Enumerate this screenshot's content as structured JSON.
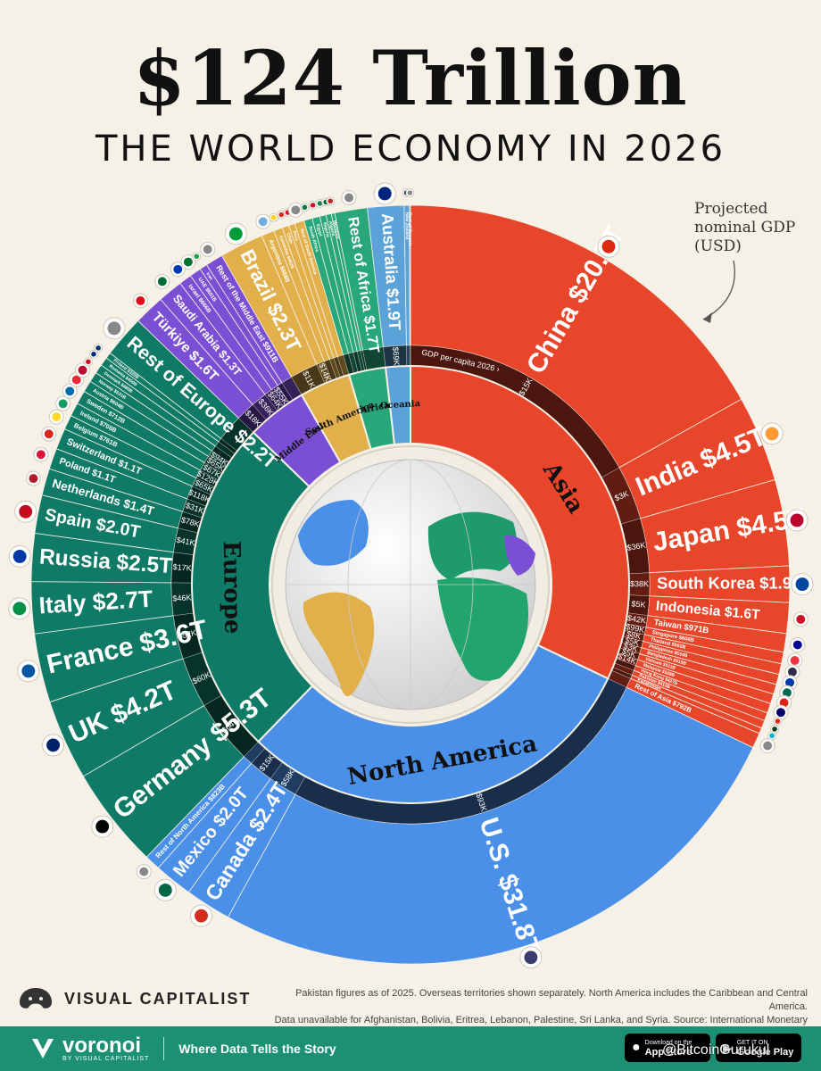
{
  "header": {
    "title": "$124 Trillion",
    "subtitle": "THE WORLD ECONOMY IN 2026",
    "note": "Projected nominal GDP (USD)"
  },
  "chart_data": {
    "type": "voronoi-donut",
    "unit": "USD",
    "per_capita_label": "GDP per capita 2026 ›",
    "regions": [
      {
        "name": "Asia",
        "color": "#e8462b",
        "countries": [
          {
            "name": "China",
            "gdp": "$20.7T",
            "value": 20.7,
            "per_capita": "$15K",
            "flag": "#de2910"
          },
          {
            "name": "India",
            "gdp": "$4.5T",
            "value": 4.5,
            "per_capita": "$3K",
            "flag": "#ff9933"
          },
          {
            "name": "Japan",
            "gdp": "$4.5T",
            "value": 4.5,
            "per_capita": "$36K",
            "flag": "#bc002d"
          },
          {
            "name": "South Korea",
            "gdp": "$1.9T",
            "value": 1.9,
            "per_capita": "$38K",
            "flag": "#0047a0"
          },
          {
            "name": "Indonesia",
            "gdp": "$1.6T",
            "value": 1.6,
            "per_capita": "$5K",
            "flag": "#ce1126"
          },
          {
            "name": "Taiwan",
            "gdp": "$971B",
            "value": 0.971,
            "per_capita": "$42K",
            "flag": "#000095"
          },
          {
            "name": "Singapore",
            "gdp": "$606B",
            "value": 0.606,
            "per_capita": "$99K",
            "flag": "#ef3340"
          },
          {
            "name": "Thailand",
            "gdp": "$562B",
            "value": 0.562,
            "per_capita": "$8K",
            "flag": "#2d2a4a"
          },
          {
            "name": "Philippines",
            "gdp": "$534B",
            "value": 0.534,
            "per_capita": "$5K",
            "flag": "#0038a8"
          },
          {
            "name": "Bangladesh",
            "gdp": "$519B",
            "value": 0.519,
            "per_capita": "$3K",
            "flag": "#006a4e"
          },
          {
            "name": "Vietnam",
            "gdp": "$511B",
            "value": 0.511,
            "per_capita": "$5K",
            "flag": "#da251d"
          },
          {
            "name": "Malaysia",
            "gdp": "$508B",
            "value": 0.508,
            "per_capita": "$14K",
            "flag": "#010066"
          },
          {
            "name": "Hong Kong",
            "gdp": "$427B",
            "value": 0.427,
            "per_capita": "$56K",
            "flag": "#de2910"
          },
          {
            "name": "Pakistan",
            "gdp": "$410B",
            "value": 0.41,
            "per_capita": "$2K",
            "flag": "#01411c"
          },
          {
            "name": "Kazakhstan",
            "gdp": "",
            "value": 0.3,
            "per_capita": "",
            "flag": "#00afca"
          },
          {
            "name": "Rest of Asia",
            "gdp": "$792B",
            "value": 0.792,
            "per_capita": "",
            "flag": "#888888"
          }
        ]
      },
      {
        "name": "North America",
        "color": "#4a8fe8",
        "countries": [
          {
            "name": "U.S.",
            "gdp": "$31.8T",
            "value": 31.8,
            "per_capita": "$93K",
            "flag": "#3c3b6e"
          },
          {
            "name": "Canada",
            "gdp": "$2.4T",
            "value": 2.4,
            "per_capita": "$58K",
            "flag": "#d52b1e"
          },
          {
            "name": "Mexico",
            "gdp": "$2.0T",
            "value": 2.0,
            "per_capita": "$15K",
            "flag": "#006847"
          },
          {
            "name": "Rest of North America",
            "gdp": "$823B",
            "value": 0.823,
            "per_capita": "",
            "flag": "#888888"
          }
        ]
      },
      {
        "name": "Europe",
        "color": "#0f7a65",
        "countries": [
          {
            "name": "Germany",
            "gdp": "$5.3T",
            "value": 5.3,
            "per_capita": "$64K",
            "flag": "#000000"
          },
          {
            "name": "UK",
            "gdp": "$4.2T",
            "value": 4.2,
            "per_capita": "$60K",
            "flag": "#012169"
          },
          {
            "name": "France",
            "gdp": "$3.6T",
            "value": 3.6,
            "per_capita": "$52K",
            "flag": "#0055a4"
          },
          {
            "name": "Italy",
            "gdp": "$2.7T",
            "value": 2.7,
            "per_capita": "$46K",
            "flag": "#009246"
          },
          {
            "name": "Russia",
            "gdp": "$2.5T",
            "value": 2.5,
            "per_capita": "$17K",
            "flag": "#0039a6"
          },
          {
            "name": "Spain",
            "gdp": "$2.0T",
            "value": 2.0,
            "per_capita": "$41K",
            "flag": "#c60b1e"
          },
          {
            "name": "Netherlands",
            "gdp": "$1.4T",
            "value": 1.4,
            "per_capita": "$78K",
            "flag": "#ae1c28"
          },
          {
            "name": "Poland",
            "gdp": "$1.1T",
            "value": 1.1,
            "per_capita": "$31K",
            "flag": "#dc143c"
          },
          {
            "name": "Switzerland",
            "gdp": "$1.1T",
            "value": 1.1,
            "per_capita": "$118K",
            "flag": "#da291c"
          },
          {
            "name": "Belgium",
            "gdp": "$761B",
            "value": 0.761,
            "per_capita": "$65K",
            "flag": "#fdda24"
          },
          {
            "name": "Ireland",
            "gdp": "$708B",
            "value": 0.708,
            "per_capita": "$129K",
            "flag": "#169b62"
          },
          {
            "name": "Sweden",
            "gdp": "$712B",
            "value": 0.712,
            "per_capita": "$67K",
            "flag": "#006aa7"
          },
          {
            "name": "Austria",
            "gdp": "$604B",
            "value": 0.604,
            "per_capita": "$65K",
            "flag": "#ed2939"
          },
          {
            "name": "Norway",
            "gdp": "$531B",
            "value": 0.531,
            "per_capita": "$94K",
            "flag": "#ba0c2f"
          },
          {
            "name": "Denmark",
            "gdp": "$480B",
            "value": 0.48,
            "per_capita": "$80K",
            "flag": "#c8102e"
          },
          {
            "name": "Romania",
            "gdp": "$450B",
            "value": 0.45,
            "per_capita": "$24K",
            "flag": "#002b7f"
          },
          {
            "name": "Finland",
            "gdp": "$320B",
            "value": 0.32,
            "per_capita": "$57K",
            "flag": "#003580"
          },
          {
            "name": "Rest of Europe",
            "gdp": "$2.2T",
            "value": 2.2,
            "per_capita": "",
            "flag": "#888888"
          }
        ]
      },
      {
        "name": "Middle East",
        "color": "#7b4fd4",
        "countries": [
          {
            "name": "Türkiye",
            "gdp": "$1.6T",
            "value": 1.6,
            "per_capita": "$18K",
            "flag": "#e30a17"
          },
          {
            "name": "Saudi Arabia",
            "gdp": "$1.3T",
            "value": 1.3,
            "per_capita": "$36K",
            "flag": "#006c35"
          },
          {
            "name": "Israel",
            "gdp": "$666B",
            "value": 0.666,
            "per_capita": "$64K",
            "flag": "#0038b8"
          },
          {
            "name": "UAE",
            "gdp": "$601B",
            "value": 0.601,
            "per_capita": "$55K",
            "flag": "#00732f"
          },
          {
            "name": "Iran",
            "gdp": "",
            "value": 0.4,
            "per_capita": "",
            "flag": "#239f40"
          },
          {
            "name": "Rest of the Middle East",
            "gdp": "$911B",
            "value": 0.911,
            "per_capita": "",
            "flag": "#888888"
          }
        ]
      },
      {
        "name": "South America",
        "color": "#e2b04a",
        "countries": [
          {
            "name": "Brazil",
            "gdp": "$2.3T",
            "value": 2.3,
            "per_capita": "$11K",
            "flag": "#009c3b"
          },
          {
            "name": "Argentina",
            "gdp": "$668B",
            "value": 0.668,
            "per_capita": "$14K",
            "flag": "#74acdf"
          },
          {
            "name": "Colombia",
            "gdp": "$462B",
            "value": 0.462,
            "per_capita": "$9K",
            "flag": "#fcd116"
          },
          {
            "name": "Chile",
            "gdp": "",
            "value": 0.36,
            "per_capita": "",
            "flag": "#d52b1e"
          },
          {
            "name": "Peru",
            "gdp": "",
            "value": 0.32,
            "per_capita": "",
            "flag": "#d91023"
          },
          {
            "name": "Rest of South America",
            "gdp": "",
            "value": 0.5,
            "per_capita": "",
            "flag": "#888888"
          }
        ]
      },
      {
        "name": "Africa",
        "color": "#27a77a",
        "countries": [
          {
            "name": "South Africa",
            "gdp": "",
            "value": 0.44,
            "per_capita": "",
            "flag": "#007a4d"
          },
          {
            "name": "Egypt",
            "gdp": "",
            "value": 0.4,
            "per_capita": "",
            "flag": "#ce1126"
          },
          {
            "name": "Nigeria",
            "gdp": "",
            "value": 0.33,
            "per_capita": "",
            "flag": "#008751"
          },
          {
            "name": "Algeria",
            "gdp": "",
            "value": 0.28,
            "per_capita": "",
            "flag": "#006233"
          },
          {
            "name": "Morocco",
            "gdp": "",
            "value": 0.18,
            "per_capita": "",
            "flag": "#c1272d"
          },
          {
            "name": "Rest of Africa",
            "gdp": "$1.7T",
            "value": 1.7,
            "per_capita": "",
            "flag": "#888888"
          }
        ]
      },
      {
        "name": "Oceania",
        "color": "#5aa2d8",
        "countries": [
          {
            "name": "Australia",
            "gdp": "$1.9T",
            "value": 1.9,
            "per_capita": "$69K",
            "flag": "#00247d"
          },
          {
            "name": "New Zealand",
            "gdp": "",
            "value": 0.28,
            "per_capita": "",
            "flag": "#00247d"
          },
          {
            "name": "Rest of Oceania",
            "gdp": "",
            "value": 0.05,
            "per_capita": "",
            "flag": "#888888"
          }
        ]
      }
    ]
  },
  "footer": {
    "brand": "VISUAL CAPITALIST",
    "footnote_1": "Pakistan figures as of 2025. Overseas territories shown separately. North America includes the Caribbean and Central America.",
    "footnote_2": "Data unavailable for Afghanistan, Bolivia, Eritrea, Lebanon, Palestine, Sri Lanka, and Syria. Source: International Monetary Fund",
    "voronoi": "voronoi",
    "voronoi_by": "BY VISUAL CAPITALIST",
    "tagline": "Where Data Tells the Story",
    "app_store_small": "Download on the",
    "app_store": "App Store",
    "google_play_small": "GET IT ON",
    "google_play": "Google Play",
    "watermark": "@BitcoinGurukul"
  }
}
